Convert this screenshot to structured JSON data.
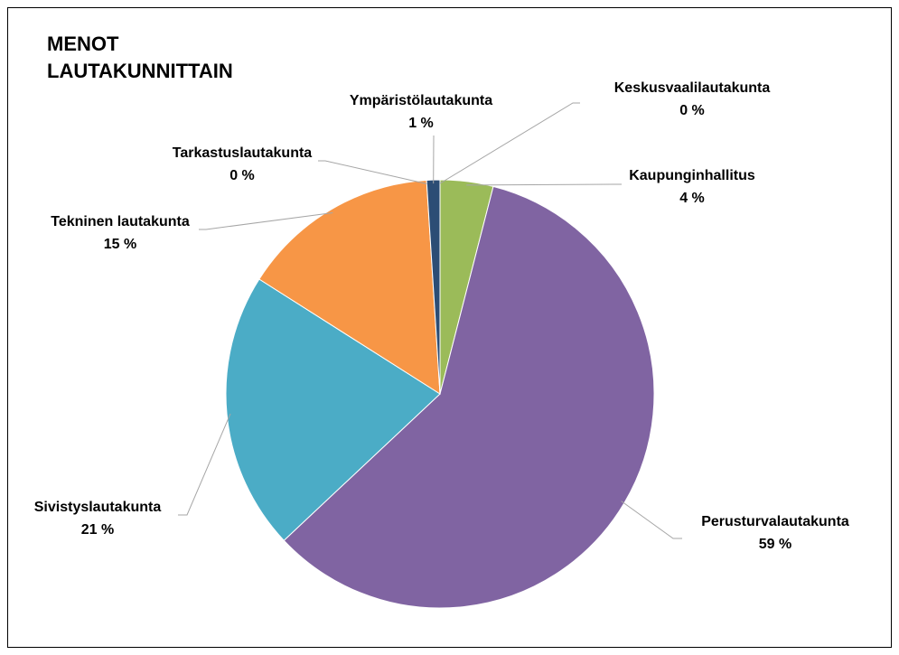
{
  "chart_data": {
    "type": "pie",
    "title": "MENOT LAUTAKUNNITTAIN",
    "categories": [
      "Keskusvaalilautakunta",
      "Kaupunginhallitus",
      "Perusturvalautakunta",
      "Sivistyslautakunta",
      "Tekninen lautakunta",
      "Tarkastuslautakunta",
      "Ympäristölautakunta"
    ],
    "values": [
      0,
      4,
      59,
      21,
      15,
      0,
      1
    ],
    "value_labels": [
      "0 %",
      "4 %",
      "59 %",
      "21 %",
      "15 %",
      "0 %",
      "1 %"
    ],
    "colors": [
      "#c0504d",
      "#9bbb59",
      "#8064a2",
      "#4bacc6",
      "#f79646",
      "#4f81bd",
      "#2c4d75"
    ]
  }
}
